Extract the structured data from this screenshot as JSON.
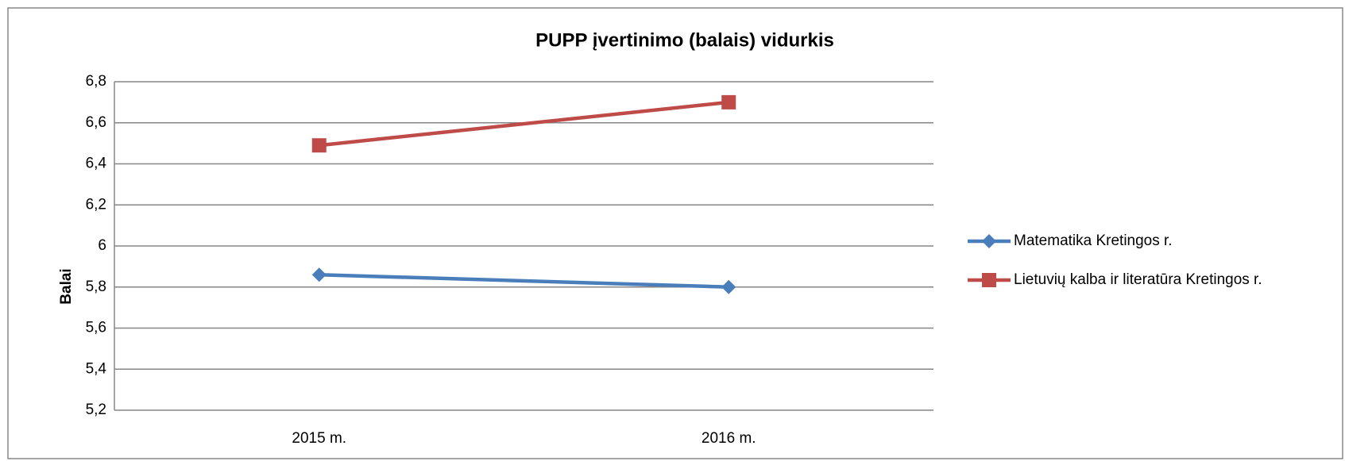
{
  "chart_data": {
    "type": "line",
    "title": "PUPP įvertinimo (balais) vidurkis",
    "y_label": "Balai",
    "categories": [
      "2015 m.",
      "2016 m."
    ],
    "series": [
      {
        "name": "Matematika Kretingos r.",
        "color": "#4a7ebb",
        "marker": "diamond",
        "values": [
          5.86,
          5.8
        ]
      },
      {
        "name": "Lietuvių kalba ir literatūra Kretingos r.",
        "color": "#be4b48",
        "marker": "square",
        "values": [
          6.49,
          6.7
        ]
      }
    ],
    "ylim": [
      5.2,
      6.8
    ],
    "yticks": [
      {
        "value": 5.2,
        "label": "5,2"
      },
      {
        "value": 5.4,
        "label": "5,4"
      },
      {
        "value": 5.6,
        "label": "5,6"
      },
      {
        "value": 5.8,
        "label": "5,8"
      },
      6,
      {
        "value": 6.2,
        "label": "6,2"
      },
      {
        "value": 6.4,
        "label": "6,4"
      },
      {
        "value": 6.6,
        "label": "6,6"
      },
      {
        "value": 6.8,
        "label": "6,8"
      }
    ],
    "grid": true,
    "legend": "right"
  }
}
